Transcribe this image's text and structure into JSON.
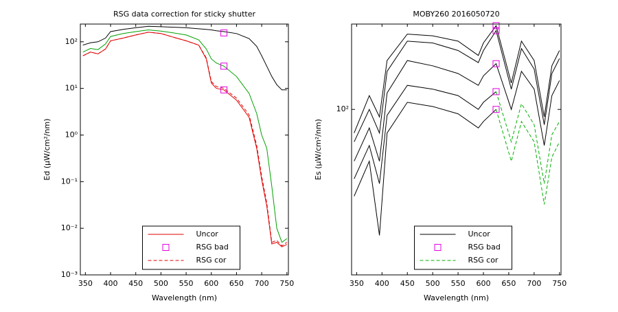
{
  "chart_data": [
    {
      "type": "line",
      "title": "RSG data correction for sticky shutter",
      "xlabel": "Wavelength (nm)",
      "ylabel": "Ed (µW/cm²/nm)",
      "xlim": [
        340,
        753
      ],
      "xticks": [
        350,
        400,
        450,
        500,
        550,
        600,
        650,
        700,
        750
      ],
      "ylim": [
        0.001,
        240
      ],
      "log_y": true,
      "yticks": [
        {
          "value": 0.001,
          "label": "10⁻³"
        },
        {
          "value": 0.01,
          "label": "10⁻²"
        },
        {
          "value": 0.1,
          "label": "10⁻¹"
        },
        {
          "value": 1,
          "label": "10⁰"
        },
        {
          "value": 10,
          "label": "10¹"
        },
        {
          "value": 100,
          "label": "10²"
        }
      ],
      "legend": "lower center",
      "x": [
        345,
        360,
        375,
        390,
        400,
        425,
        450,
        475,
        500,
        525,
        550,
        575,
        590,
        600,
        610,
        625,
        650,
        675,
        690,
        700,
        710,
        720,
        730,
        740,
        750
      ],
      "series": [
        {
          "name": "Uncor",
          "color": "#e00000",
          "dash": false,
          "values": [
            50,
            60,
            55,
            70,
            105,
            120,
            140,
            160,
            150,
            125,
            105,
            85,
            43,
            13,
            10,
            9.3,
            5.6,
            2.4,
            0.52,
            0.11,
            0.03,
            0.0046,
            0.005,
            0.004,
            0.0045
          ]
        },
        {
          "name": "RSG cor",
          "color": "#e00000",
          "dash": true,
          "values": [
            50,
            60,
            55,
            70,
            105,
            120,
            140,
            160,
            150,
            125,
            105,
            85,
            45,
            14,
            11,
            10,
            6.2,
            2.7,
            0.6,
            0.13,
            0.035,
            0.005,
            0.0055,
            0.0042,
            0.005
          ]
        },
        {
          "color": "#00a000",
          "dash": false,
          "values": [
            60,
            72,
            68,
            90,
            130,
            150,
            165,
            180,
            170,
            155,
            140,
            110,
            70,
            43,
            35,
            30,
            18,
            7.8,
            2.9,
            1.0,
            0.52,
            0.08,
            0.01,
            0.005,
            0.006
          ]
        },
        {
          "color": "#000000",
          "dash": false,
          "values": [
            85,
            95,
            100,
            120,
            165,
            185,
            200,
            215,
            210,
            205,
            200,
            190,
            185,
            180,
            172,
            165,
            150,
            117,
            80,
            50,
            30,
            18,
            12,
            9.3,
            9.3
          ]
        }
      ],
      "markers": {
        "name": "RSG bad",
        "color": "#e000e0",
        "x": [
          625,
          625,
          625
        ],
        "values": [
          155,
          30,
          9.3
        ]
      }
    },
    {
      "type": "line",
      "title": "MOBY260  2016050720",
      "xlabel": "Wavelength (nm)",
      "ylabel": "Es (µW/cm²/nm)",
      "xlim": [
        340,
        753
      ],
      "xticks": [
        350,
        400,
        450,
        500,
        550,
        600,
        650,
        700,
        750
      ],
      "ylim": [
        32,
        180
      ],
      "log_y": true,
      "yticks": [
        {
          "value": 100,
          "label": "10²"
        }
      ],
      "legend": "lower center",
      "x": [
        345,
        375,
        395,
        410,
        450,
        500,
        550,
        590,
        600,
        625,
        655,
        675,
        700,
        720,
        735,
        750
      ],
      "series": [
        {
          "name": "Uncor",
          "color": "#000000",
          "dash": false,
          "values": [
            85,
            110,
            95,
            140,
            168,
            166,
            160,
            145,
            158,
            178,
            120,
            160,
            140,
            95,
            135,
            150
          ]
        },
        {
          "color": "#000000",
          "dash": false,
          "values": [
            80,
            100,
            85,
            130,
            160,
            158,
            150,
            138,
            150,
            172,
            115,
            152,
            132,
            90,
            128,
            142
          ]
        },
        {
          "color": "#000000",
          "dash": false,
          "values": [
            70,
            88,
            70,
            112,
            140,
            135,
            128,
            118,
            126,
            137,
            100,
            130,
            115,
            78,
            110,
            122
          ]
        },
        {
          "color": "#000000",
          "dash": false,
          "values": [
            62,
            78,
            60,
            96,
            118,
            115,
            110,
            100,
            105,
            113,
            null,
            null,
            null,
            null,
            null,
            null
          ]
        },
        {
          "color": "#000000",
          "dash": false,
          "values": [
            55,
            70,
            42,
            85,
            105,
            102,
            97,
            88,
            92,
            100,
            null,
            null,
            null,
            null,
            null,
            null
          ]
        },
        {
          "name": "RSG cor",
          "color": "#00b000",
          "dash": true,
          "values": [
            null,
            null,
            null,
            null,
            null,
            null,
            null,
            null,
            null,
            113,
            80,
            104,
            90,
            60,
            84,
            92
          ]
        },
        {
          "color": "#00b000",
          "dash": true,
          "values": [
            null,
            null,
            null,
            null,
            null,
            null,
            null,
            null,
            null,
            100,
            70,
            92,
            80,
            52,
            72,
            80
          ]
        }
      ],
      "markers": {
        "name": "RSG bad",
        "color": "#e000e0",
        "x": [
          625,
          625,
          625,
          625,
          625
        ],
        "values": [
          178,
          172,
          137,
          113,
          100
        ]
      }
    }
  ]
}
